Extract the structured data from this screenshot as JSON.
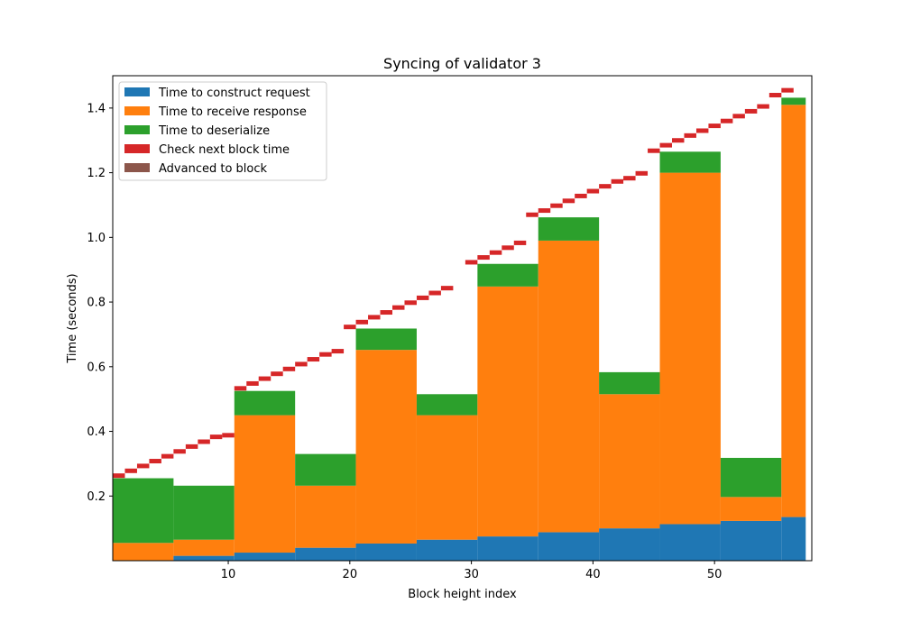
{
  "chart_data": {
    "type": "bar",
    "title": "Syncing of validator 3",
    "xlabel": "Block height index",
    "ylabel": "Time (seconds)",
    "xlim": [
      0.5,
      58
    ],
    "ylim": [
      0,
      1.5
    ],
    "xticks": [
      10,
      20,
      30,
      40,
      50
    ],
    "yticks": [
      0.2,
      0.4,
      0.6,
      0.8,
      1.0,
      1.2,
      1.4
    ],
    "tick_labels_y": [
      "0.2",
      "0.4",
      "0.6",
      "0.8",
      "1.0",
      "1.2",
      "1.4"
    ],
    "tick_labels_x": [
      "10",
      "20",
      "30",
      "40",
      "50"
    ],
    "legend_position": "upper-left",
    "series": [
      {
        "name": "Time to construct request",
        "color": "#1f77b4"
      },
      {
        "name": "Time to receive response",
        "color": "#ff7f0e"
      },
      {
        "name": "Time to deserialize",
        "color": "#2ca02c"
      },
      {
        "name": "Check next block time",
        "color": "#d62728"
      },
      {
        "name": "Advanced to block",
        "color": "#8c564b"
      }
    ],
    "batches": [
      {
        "x_start": 0.5,
        "x_end": 5.5,
        "construct_end": 0.0,
        "response_end": 0.055,
        "deserialize_end": 0.255
      },
      {
        "x_start": 5.5,
        "x_end": 10.5,
        "construct_end": 0.015,
        "response_end": 0.065,
        "deserialize_end": 0.232
      },
      {
        "x_start": 10.5,
        "x_end": 15.5,
        "construct_end": 0.025,
        "response_end": 0.45,
        "deserialize_end": 0.525
      },
      {
        "x_start": 15.5,
        "x_end": 20.5,
        "construct_end": 0.04,
        "response_end": 0.232,
        "deserialize_end": 0.33
      },
      {
        "x_start": 20.5,
        "x_end": 25.5,
        "construct_end": 0.053,
        "response_end": 0.652,
        "deserialize_end": 0.718
      },
      {
        "x_start": 25.5,
        "x_end": 30.5,
        "construct_end": 0.065,
        "response_end": 0.45,
        "deserialize_end": 0.515
      },
      {
        "x_start": 30.5,
        "x_end": 35.5,
        "construct_end": 0.075,
        "response_end": 0.848,
        "deserialize_end": 0.918
      },
      {
        "x_start": 35.5,
        "x_end": 40.5,
        "construct_end": 0.088,
        "response_end": 0.99,
        "deserialize_end": 1.062
      },
      {
        "x_start": 40.5,
        "x_end": 45.5,
        "construct_end": 0.1,
        "response_end": 0.515,
        "deserialize_end": 0.583
      },
      {
        "x_start": 45.5,
        "x_end": 50.5,
        "construct_end": 0.113,
        "response_end": 1.2,
        "deserialize_end": 1.265
      },
      {
        "x_start": 50.5,
        "x_end": 55.5,
        "construct_end": 0.123,
        "response_end": 0.197,
        "deserialize_end": 0.318
      },
      {
        "x_start": 55.5,
        "x_end": 57.5,
        "construct_end": 0.135,
        "response_end": 1.41,
        "deserialize_end": 1.432
      }
    ],
    "check_next_block_time": [
      {
        "x": 1,
        "y": 0.263
      },
      {
        "x": 2,
        "y": 0.278
      },
      {
        "x": 3,
        "y": 0.293
      },
      {
        "x": 4,
        "y": 0.308
      },
      {
        "x": 5,
        "y": 0.323
      },
      {
        "x": 6,
        "y": 0.338
      },
      {
        "x": 7,
        "y": 0.353
      },
      {
        "x": 8,
        "y": 0.368
      },
      {
        "x": 9,
        "y": 0.383
      },
      {
        "x": 10,
        "y": 0.388
      },
      {
        "x": 11,
        "y": 0.533
      },
      {
        "x": 12,
        "y": 0.548
      },
      {
        "x": 13,
        "y": 0.563
      },
      {
        "x": 14,
        "y": 0.578
      },
      {
        "x": 15,
        "y": 0.593
      },
      {
        "x": 16,
        "y": 0.608
      },
      {
        "x": 17,
        "y": 0.623
      },
      {
        "x": 18,
        "y": 0.638
      },
      {
        "x": 19,
        "y": 0.648
      },
      {
        "x": 20,
        "y": 0.723
      },
      {
        "x": 21,
        "y": 0.738
      },
      {
        "x": 22,
        "y": 0.753
      },
      {
        "x": 23,
        "y": 0.768
      },
      {
        "x": 24,
        "y": 0.783
      },
      {
        "x": 25,
        "y": 0.798
      },
      {
        "x": 26,
        "y": 0.813
      },
      {
        "x": 27,
        "y": 0.828
      },
      {
        "x": 28,
        "y": 0.843
      },
      {
        "x": 30,
        "y": 0.923
      },
      {
        "x": 31,
        "y": 0.938
      },
      {
        "x": 32,
        "y": 0.953
      },
      {
        "x": 33,
        "y": 0.968
      },
      {
        "x": 34,
        "y": 0.983
      },
      {
        "x": 35,
        "y": 1.07
      },
      {
        "x": 36,
        "y": 1.083
      },
      {
        "x": 37,
        "y": 1.098
      },
      {
        "x": 38,
        "y": 1.113
      },
      {
        "x": 39,
        "y": 1.128
      },
      {
        "x": 40,
        "y": 1.143
      },
      {
        "x": 41,
        "y": 1.158
      },
      {
        "x": 42,
        "y": 1.173
      },
      {
        "x": 43,
        "y": 1.183
      },
      {
        "x": 44,
        "y": 1.198
      },
      {
        "x": 45,
        "y": 1.268
      },
      {
        "x": 46,
        "y": 1.285
      },
      {
        "x": 47,
        "y": 1.3
      },
      {
        "x": 48,
        "y": 1.315
      },
      {
        "x": 49,
        "y": 1.33
      },
      {
        "x": 50,
        "y": 1.345
      },
      {
        "x": 51,
        "y": 1.36
      },
      {
        "x": 52,
        "y": 1.375
      },
      {
        "x": 53,
        "y": 1.39
      },
      {
        "x": 54,
        "y": 1.405
      },
      {
        "x": 55,
        "y": 1.44
      },
      {
        "x": 56,
        "y": 1.455
      }
    ]
  }
}
